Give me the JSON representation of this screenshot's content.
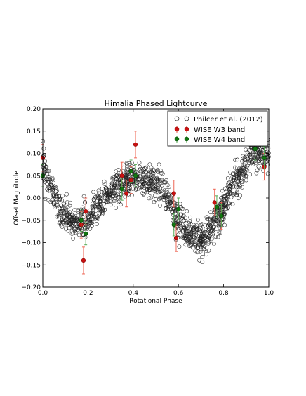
{
  "chart_data": {
    "type": "scatter",
    "title": "Himalia Phased Lightcurve",
    "xlabel": "Rotational Phase",
    "ylabel": "Offset Magnitude",
    "xlim": [
      0.0,
      1.0
    ],
    "ylim": [
      -0.2,
      0.2
    ],
    "x_ticks": [
      "0.0",
      "0.2",
      "0.4",
      "0.6",
      "0.8",
      "1.0"
    ],
    "y_ticks": [
      "−0.20",
      "−0.15",
      "−0.10",
      "−0.05",
      "0.00",
      "0.05",
      "0.10",
      "0.15",
      "0.20"
    ],
    "grid": false,
    "legend_position": "top-right",
    "colors": {
      "w3": "#cc1111",
      "w4": "#117711",
      "w3_err": "#ee6655",
      "w4_err": "#55aa55"
    },
    "series": [
      {
        "name": "Philcer et al. (2012)",
        "style": "open-circle",
        "trend_x": [
          0.0,
          0.03,
          0.07,
          0.1,
          0.13,
          0.17,
          0.2,
          0.23,
          0.27,
          0.3,
          0.33,
          0.37,
          0.4,
          0.43,
          0.47,
          0.5,
          0.53,
          0.57,
          0.6,
          0.63,
          0.67,
          0.7,
          0.73,
          0.77,
          0.8,
          0.83,
          0.87,
          0.9,
          0.93,
          0.97,
          1.0
        ],
        "trend_y": [
          0.08,
          0.03,
          -0.02,
          -0.045,
          -0.055,
          -0.055,
          -0.05,
          -0.03,
          -0.005,
          0.01,
          0.025,
          0.035,
          0.04,
          0.04,
          0.035,
          0.035,
          0.025,
          -0.02,
          -0.055,
          -0.07,
          -0.085,
          -0.095,
          -0.08,
          -0.05,
          -0.02,
          0.02,
          0.05,
          0.08,
          0.1,
          0.105,
          0.09
        ],
        "point_count": 1400,
        "scatter": 0.018
      },
      {
        "name": "WISE W3 band",
        "style": "filled-circle",
        "x": [
          0.0,
          0.17,
          0.18,
          0.19,
          0.35,
          0.37,
          0.39,
          0.41,
          0.58,
          0.59,
          0.76,
          0.79,
          0.98
        ],
        "y": [
          0.09,
          -0.06,
          -0.14,
          -0.03,
          0.05,
          0.01,
          0.04,
          0.12,
          0.01,
          -0.09,
          -0.01,
          -0.04,
          0.07
        ],
        "err": [
          0.03,
          0.03,
          0.03,
          0.03,
          0.03,
          0.03,
          0.03,
          0.03,
          0.03,
          0.03,
          0.03,
          0.03,
          0.03
        ]
      },
      {
        "name": "WISE W4 band",
        "style": "filled-circle",
        "x": [
          0.0,
          0.17,
          0.19,
          0.35,
          0.39,
          0.41,
          0.58,
          0.6,
          0.77,
          0.79,
          0.94,
          0.98
        ],
        "y": [
          0.05,
          -0.05,
          -0.08,
          0.02,
          0.06,
          0.05,
          -0.06,
          -0.025,
          -0.02,
          -0.04,
          0.11,
          0.09
        ],
        "err": [
          0.025,
          0.025,
          0.025,
          0.025,
          0.025,
          0.025,
          0.025,
          0.025,
          0.025,
          0.025,
          0.025,
          0.025
        ]
      }
    ]
  }
}
